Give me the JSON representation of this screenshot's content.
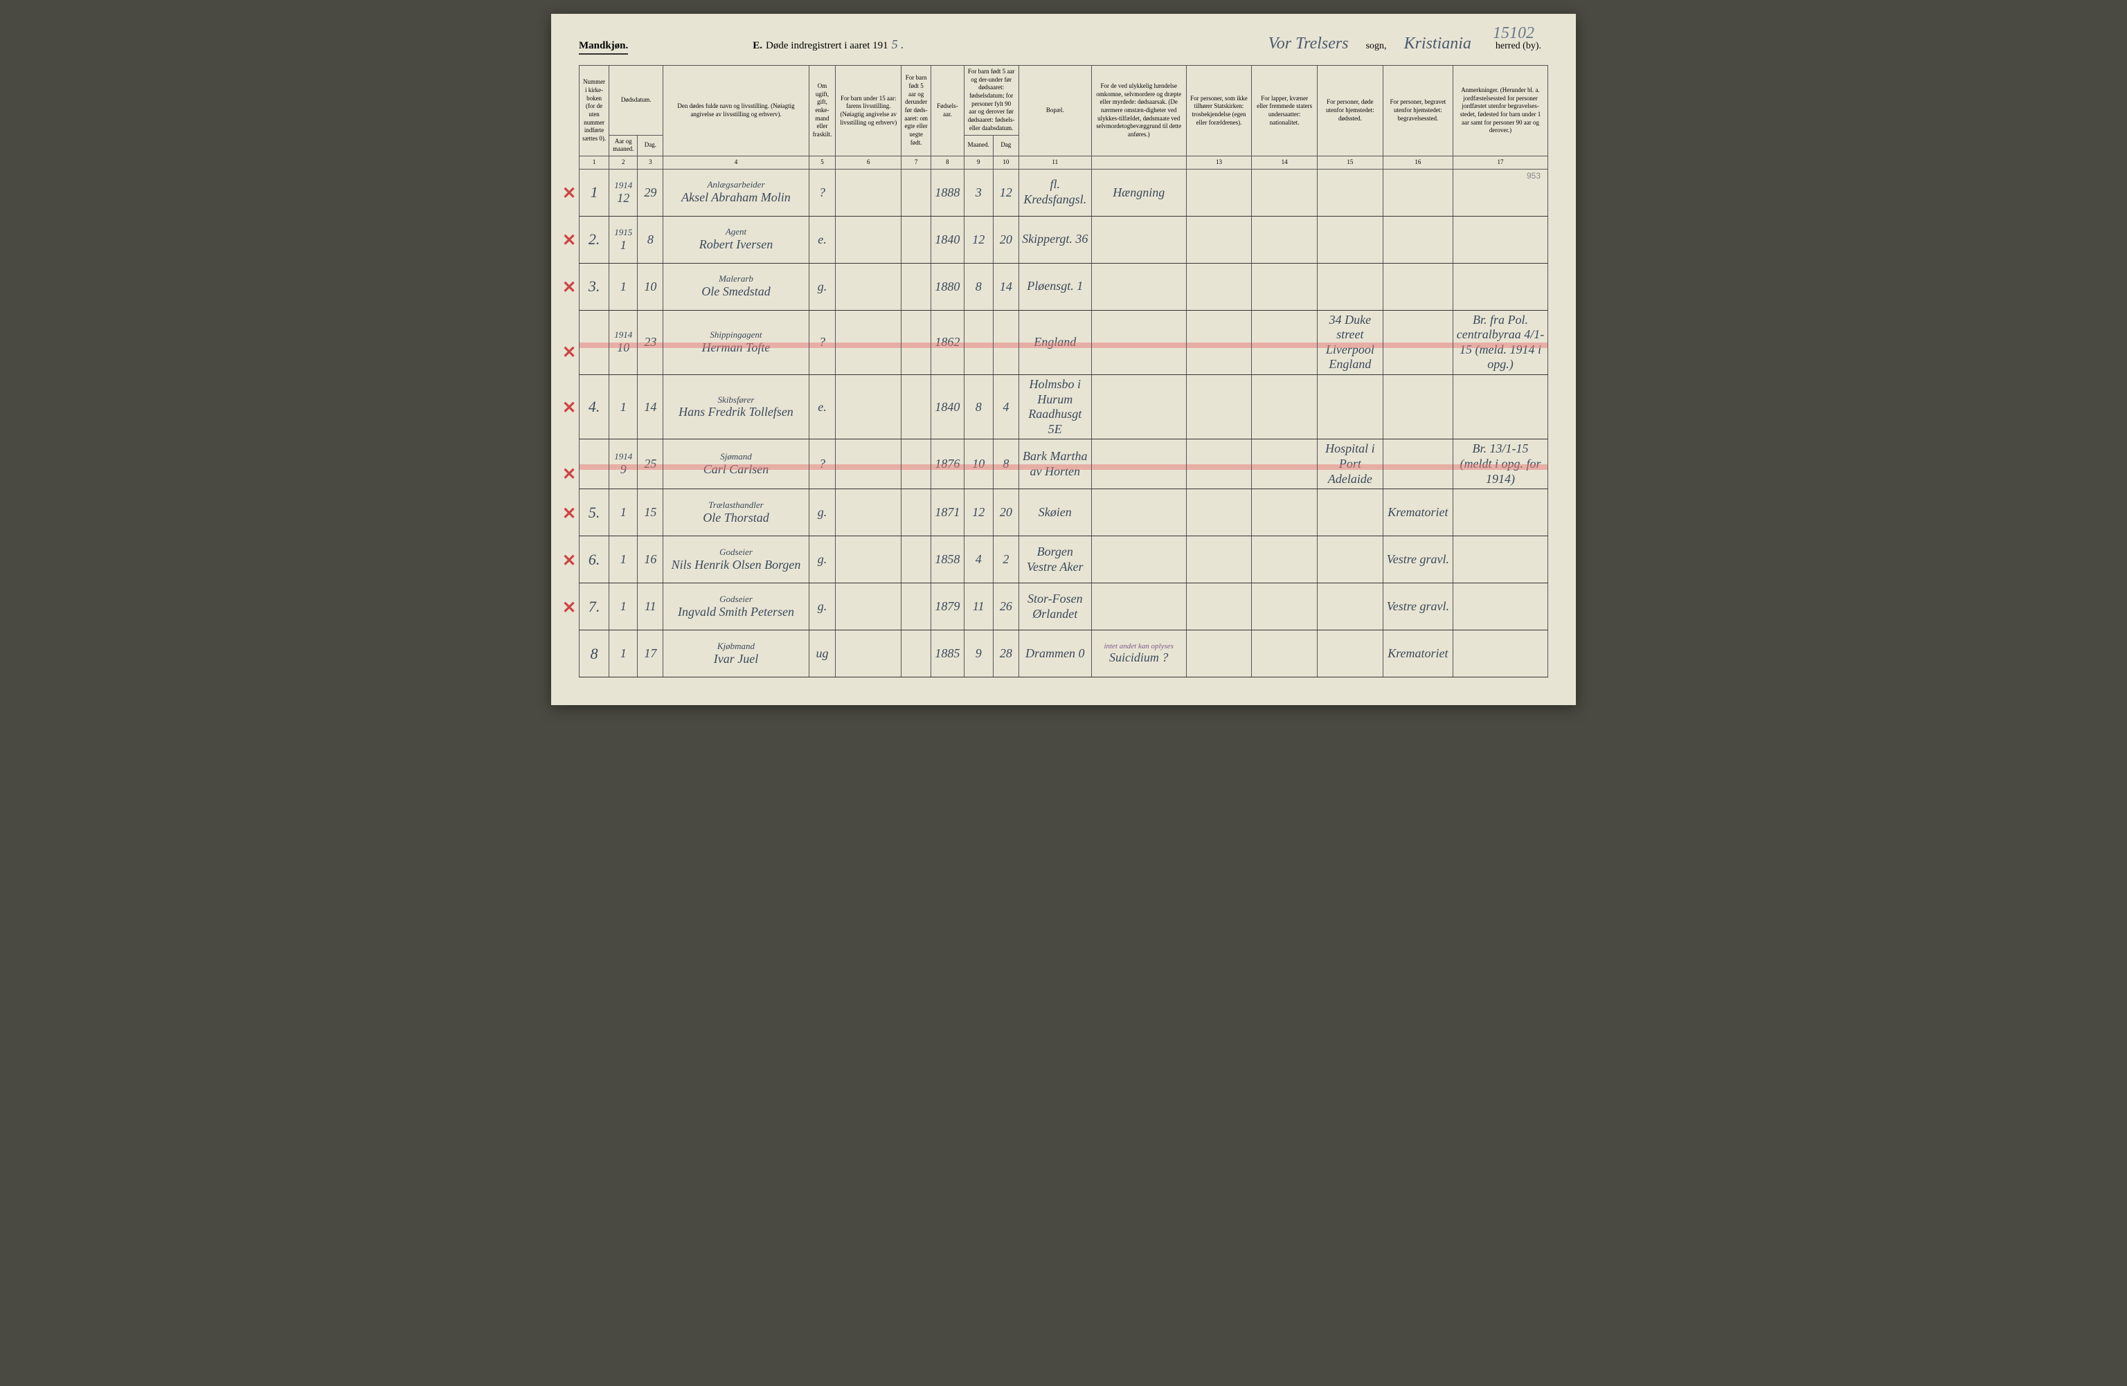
{
  "pageNumber": "15102",
  "header": {
    "mandkjonn": "Mandkjøn.",
    "titleE": "E.",
    "titleText": "Døde indregistrert i aaret 191",
    "yearSuffix": "5 .",
    "sognName": "Vor Trelsers",
    "sognLabel": "sogn,",
    "herredName": "Kristiania",
    "herredLabel": "herred (by)."
  },
  "columns": {
    "c1": "Nummer i kirke-boken (for de uten nummer indførte sættes 0).",
    "c2a": "Dødsdatum.",
    "c2b": "Aar og maaned.",
    "c3": "Dag.",
    "c4": "Den dødes fulde navn og livsstilling. (Nøiagtig angivelse av livsstilling og erhverv).",
    "c5": "Om ugift, gift, enke-mand eller fraskilt.",
    "c6": "For barn under 15 aar: farens livsstilling. (Nøiagtig angivelse av livsstilling og erhverv)",
    "c7": "For barn født 5 aar og derunder før døds-aaret: om egte eller uegte født.",
    "c8": "Fødsels-aar.",
    "c9": "For barn født 5 aar og der-under før dødsaaret: fødselsdatum; for personer fylt 90 aar og derover før dødsaaret: fødsels- eller daabsdatum.",
    "c9a": "Maaned.",
    "c9b": "Dag",
    "c11": "Bopæl.",
    "c12": "For de ved ulykkelig hændelse omkomne, selvmordere og dræpte eller myrdede: dødsaarsak. (De nærmere omstæn-digheter ved ulykkes-tilfældet, dødsmaate ved selvmordetogbevæggrund til dette anføres.)",
    "c13": "For personer, som ikke tilhører Statskirken: trosbekjendelse (egen eller forældrenes).",
    "c14": "For lapper, kvæner eller fremmede staters undersaatter: nationalitet.",
    "c15": "For personer, døde utenfor hjemstedet: dødssted.",
    "c16": "For personer, begravet utenfor hjemstedet: begravelsessted.",
    "c17": "Anmerkninger. (Herunder bl. a. jordfæstelsessted for personer jordfæstet utenfor begravelses-stedet, fødested for barn under 1 aar samt for personer 90 aar og derover.)"
  },
  "colnums": [
    "1",
    "2",
    "3",
    "4",
    "5",
    "6",
    "7",
    "8",
    "9",
    "10",
    "11",
    "",
    "13",
    "14",
    "15",
    "16",
    "17"
  ],
  "corner953": "953",
  "rows": [
    {
      "num": "1",
      "yearTop": "1914",
      "month": "12",
      "day": "29",
      "occ": "Anlægsarbeider",
      "name": "Aksel Abraham Molin",
      "status": "?",
      "faar": "1888",
      "fm": "3",
      "fd": "12",
      "bopael": "fl. Kredsfangsl.",
      "cause": "Hængning",
      "c12top": "",
      "c15": "",
      "c16": "",
      "c17": "",
      "xmark": true,
      "strike": false
    },
    {
      "num": "2.",
      "yearTop": "1915",
      "month": "1",
      "day": "8",
      "occ": "Agent",
      "name": "Robert Iversen",
      "status": "e.",
      "faar": "1840",
      "fm": "12",
      "fd": "20",
      "bopael": "Skippergt. 36",
      "cause": "",
      "c15": "",
      "c16": "",
      "c17": "",
      "xmark": true,
      "strike": false
    },
    {
      "num": "3.",
      "yearTop": "",
      "month": "1",
      "day": "10",
      "occ": "Malerarb",
      "name": "Ole Smedstad",
      "status": "g.",
      "faar": "1880",
      "fm": "8",
      "fd": "14",
      "bopael": "Pløensgt. 1",
      "cause": "",
      "c15": "",
      "c16": "",
      "c17": "",
      "xmark": true,
      "strike": false
    },
    {
      "num": "",
      "yearTop": "1914",
      "month": "10",
      "day": "23",
      "occ": "Shippingagent",
      "name": "Herman Tofte",
      "status": "?",
      "faar": "1862",
      "fm": "",
      "fd": "",
      "bopael": "England",
      "cause": "",
      "c15": "34 Duke street Liverpool England",
      "c16": "",
      "c17": "Br. fra Pol. centralbyraa 4/1-15 (meld. 1914 i opg.)",
      "xmark": true,
      "strike": true
    },
    {
      "num": "4.",
      "yearTop": "",
      "month": "1",
      "day": "14",
      "occ": "Skibsfører",
      "name": "Hans Fredrik Tollefsen",
      "status": "e.",
      "faar": "1840",
      "fm": "8",
      "fd": "4",
      "bopael": "Holmsbo i Hurum Raadhusgt 5E",
      "cause": "",
      "c15": "",
      "c16": "",
      "c17": "",
      "xmark": true,
      "strike": false
    },
    {
      "num": "",
      "yearTop": "1914",
      "month": "9",
      "day": "25",
      "occ": "Sjømand",
      "name": "Carl Carlsen",
      "status": "?",
      "faar": "1876",
      "fm": "10",
      "fd": "8",
      "bopael": "Bark Martha av Horten",
      "cause": "",
      "c15": "Hospital i Port Adelaide",
      "c16": "",
      "c17": "Br. 13/1-15 (meldt i opg. for 1914)",
      "xmark": true,
      "strike": true
    },
    {
      "num": "5.",
      "yearTop": "",
      "month": "1",
      "day": "15",
      "occ": "Trælasthandler",
      "name": "Ole Thorstad",
      "status": "g.",
      "faar": "1871",
      "fm": "12",
      "fd": "20",
      "bopael": "Skøien",
      "cause": "",
      "c15": "",
      "c16": "Krematoriet",
      "c17": "",
      "xmark": true,
      "strike": false
    },
    {
      "num": "6.",
      "yearTop": "",
      "month": "1",
      "day": "16",
      "occ": "Godseier",
      "name": "Nils Henrik Olsen Borgen",
      "status": "g.",
      "faar": "1858",
      "fm": "4",
      "fd": "2",
      "bopael": "Borgen Vestre Aker",
      "cause": "",
      "c15": "",
      "c16": "Vestre gravl.",
      "c17": "",
      "xmark": true,
      "strike": false
    },
    {
      "num": "7.",
      "yearTop": "",
      "month": "1",
      "day": "11",
      "occ": "Godseier",
      "name": "Ingvald Smith Petersen",
      "status": "g.",
      "faar": "1879",
      "fm": "11",
      "fd": "26",
      "bopael": "Stor-Fosen Ørlandet",
      "cause": "",
      "c15": "",
      "c16": "Vestre gravl.",
      "c17": "",
      "xmark": true,
      "strike": false
    },
    {
      "num": "8",
      "yearTop": "",
      "month": "1",
      "day": "17",
      "occ": "Kjøbmand",
      "name": "Ivar Juel",
      "status": "ug",
      "faar": "1885",
      "fm": "9",
      "fd": "28",
      "bopael": "Drammen 0",
      "cause": "Suicidium ?",
      "c12top": "intet andet kan oplyses",
      "c15": "",
      "c16": "Krematoriet",
      "c17": "",
      "xmark": false,
      "strike": false
    }
  ]
}
